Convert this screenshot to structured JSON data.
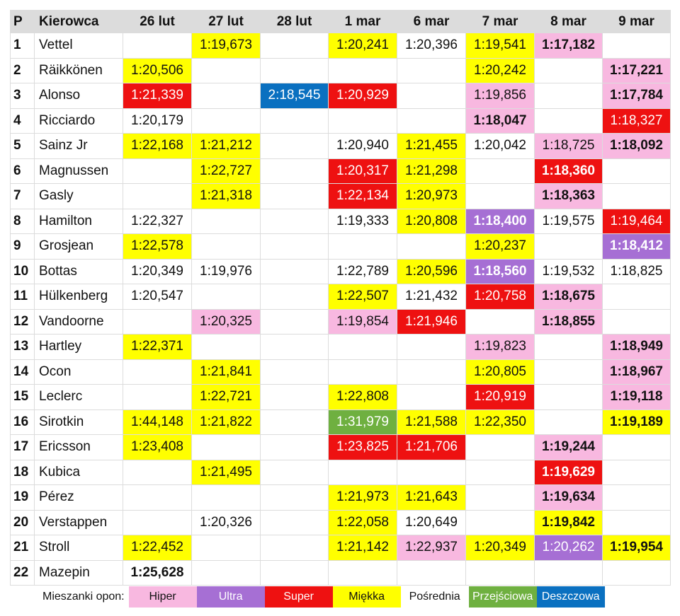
{
  "table": {
    "headers": {
      "position": "P",
      "driver": "Kierowca",
      "days": [
        "26 lut",
        "27 lut",
        "28 lut",
        "1 mar",
        "6 mar",
        "7 mar",
        "8 mar",
        "9 mar"
      ]
    },
    "rows": [
      {
        "pos": "1",
        "driver": "Vettel",
        "cells": [
          {
            "t": ""
          },
          {
            "t": "1:19,673",
            "c": "miekka"
          },
          {
            "t": ""
          },
          {
            "t": "1:20,241",
            "c": "miekka"
          },
          {
            "t": "1:20,396"
          },
          {
            "t": "1:19,541",
            "c": "miekka"
          },
          {
            "t": "1:17,182",
            "c": "hiper",
            "b": true
          },
          {
            "t": ""
          }
        ]
      },
      {
        "pos": "2",
        "driver": "Räikkönen",
        "cells": [
          {
            "t": "1:20,506",
            "c": "miekka"
          },
          {
            "t": ""
          },
          {
            "t": ""
          },
          {
            "t": ""
          },
          {
            "t": ""
          },
          {
            "t": "1:20,242",
            "c": "miekka"
          },
          {
            "t": ""
          },
          {
            "t": "1:17,221",
            "c": "hiper",
            "b": true
          }
        ]
      },
      {
        "pos": "3",
        "driver": "Alonso",
        "cells": [
          {
            "t": "1:21,339",
            "c": "super"
          },
          {
            "t": ""
          },
          {
            "t": "2:18,545",
            "c": "deszczowa"
          },
          {
            "t": "1:20,929",
            "c": "super"
          },
          {
            "t": ""
          },
          {
            "t": "1:19,856",
            "c": "hiper"
          },
          {
            "t": ""
          },
          {
            "t": "1:17,784",
            "c": "hiper",
            "b": true
          }
        ]
      },
      {
        "pos": "4",
        "driver": "Ricciardo",
        "cells": [
          {
            "t": "1:20,179"
          },
          {
            "t": ""
          },
          {
            "t": ""
          },
          {
            "t": ""
          },
          {
            "t": ""
          },
          {
            "t": "1:18,047",
            "c": "hiper",
            "b": true
          },
          {
            "t": ""
          },
          {
            "t": "1:18,327",
            "c": "super"
          }
        ]
      },
      {
        "pos": "5",
        "driver": "Sainz Jr",
        "cells": [
          {
            "t": "1:22,168",
            "c": "miekka"
          },
          {
            "t": "1:21,212",
            "c": "miekka"
          },
          {
            "t": ""
          },
          {
            "t": "1:20,940"
          },
          {
            "t": "1:21,455",
            "c": "miekka"
          },
          {
            "t": "1:20,042"
          },
          {
            "t": "1:18,725",
            "c": "hiper"
          },
          {
            "t": "1:18,092",
            "c": "hiper",
            "b": true
          }
        ]
      },
      {
        "pos": "6",
        "driver": "Magnussen",
        "cells": [
          {
            "t": ""
          },
          {
            "t": "1:22,727",
            "c": "miekka"
          },
          {
            "t": ""
          },
          {
            "t": "1:20,317",
            "c": "super"
          },
          {
            "t": "1:21,298",
            "c": "miekka"
          },
          {
            "t": ""
          },
          {
            "t": "1:18,360",
            "c": "super",
            "b": true
          },
          {
            "t": ""
          }
        ]
      },
      {
        "pos": "7",
        "driver": "Gasly",
        "cells": [
          {
            "t": ""
          },
          {
            "t": "1:21,318",
            "c": "miekka"
          },
          {
            "t": ""
          },
          {
            "t": "1:22,134",
            "c": "super"
          },
          {
            "t": "1:20,973",
            "c": "miekka"
          },
          {
            "t": ""
          },
          {
            "t": "1:18,363",
            "c": "hiper",
            "b": true
          },
          {
            "t": ""
          }
        ]
      },
      {
        "pos": "8",
        "driver": "Hamilton",
        "cells": [
          {
            "t": "1:22,327"
          },
          {
            "t": ""
          },
          {
            "t": ""
          },
          {
            "t": "1:19,333"
          },
          {
            "t": "1:20,808",
            "c": "miekka"
          },
          {
            "t": "1:18,400",
            "c": "ultra",
            "b": true
          },
          {
            "t": "1:19,575"
          },
          {
            "t": "1:19,464",
            "c": "super"
          }
        ]
      },
      {
        "pos": "9",
        "driver": "Grosjean",
        "cells": [
          {
            "t": "1:22,578",
            "c": "miekka"
          },
          {
            "t": ""
          },
          {
            "t": ""
          },
          {
            "t": ""
          },
          {
            "t": ""
          },
          {
            "t": "1:20,237",
            "c": "miekka"
          },
          {
            "t": ""
          },
          {
            "t": "1:18,412",
            "c": "ultra",
            "b": true
          }
        ]
      },
      {
        "pos": "10",
        "driver": "Bottas",
        "cells": [
          {
            "t": "1:20,349"
          },
          {
            "t": "1:19,976"
          },
          {
            "t": ""
          },
          {
            "t": "1:22,789"
          },
          {
            "t": "1:20,596",
            "c": "miekka"
          },
          {
            "t": "1:18,560",
            "c": "ultra",
            "b": true
          },
          {
            "t": "1:19,532"
          },
          {
            "t": "1:18,825"
          }
        ]
      },
      {
        "pos": "11",
        "driver": "Hülkenberg",
        "cells": [
          {
            "t": "1:20,547"
          },
          {
            "t": ""
          },
          {
            "t": ""
          },
          {
            "t": "1:22,507",
            "c": "miekka"
          },
          {
            "t": "1:21,432"
          },
          {
            "t": "1:20,758",
            "c": "super"
          },
          {
            "t": "1:18,675",
            "c": "hiper",
            "b": true
          },
          {
            "t": ""
          }
        ]
      },
      {
        "pos": "12",
        "driver": "Vandoorne",
        "cells": [
          {
            "t": ""
          },
          {
            "t": "1:20,325",
            "c": "hiper"
          },
          {
            "t": ""
          },
          {
            "t": "1:19,854",
            "c": "hiper"
          },
          {
            "t": "1:21,946",
            "c": "super"
          },
          {
            "t": ""
          },
          {
            "t": "1:18,855",
            "c": "hiper",
            "b": true
          },
          {
            "t": ""
          }
        ]
      },
      {
        "pos": "13",
        "driver": "Hartley",
        "cells": [
          {
            "t": "1:22,371",
            "c": "miekka"
          },
          {
            "t": ""
          },
          {
            "t": ""
          },
          {
            "t": ""
          },
          {
            "t": ""
          },
          {
            "t": "1:19,823",
            "c": "hiper"
          },
          {
            "t": ""
          },
          {
            "t": "1:18,949",
            "c": "hiper",
            "b": true
          }
        ]
      },
      {
        "pos": "14",
        "driver": "Ocon",
        "cells": [
          {
            "t": ""
          },
          {
            "t": "1:21,841",
            "c": "miekka"
          },
          {
            "t": ""
          },
          {
            "t": ""
          },
          {
            "t": ""
          },
          {
            "t": "1:20,805",
            "c": "miekka"
          },
          {
            "t": ""
          },
          {
            "t": "1:18,967",
            "c": "hiper",
            "b": true
          }
        ]
      },
      {
        "pos": "15",
        "driver": "Leclerc",
        "cells": [
          {
            "t": ""
          },
          {
            "t": "1:22,721",
            "c": "miekka"
          },
          {
            "t": ""
          },
          {
            "t": "1:22,808",
            "c": "miekka"
          },
          {
            "t": ""
          },
          {
            "t": "1:20,919",
            "c": "super"
          },
          {
            "t": ""
          },
          {
            "t": "1:19,118",
            "c": "hiper",
            "b": true
          }
        ]
      },
      {
        "pos": "16",
        "driver": "Sirotkin",
        "cells": [
          {
            "t": "1:44,148",
            "c": "miekka"
          },
          {
            "t": "1:21,822",
            "c": "miekka"
          },
          {
            "t": ""
          },
          {
            "t": "1:31,979",
            "c": "przejsciowa"
          },
          {
            "t": "1:21,588",
            "c": "miekka"
          },
          {
            "t": "1:22,350",
            "c": "miekka"
          },
          {
            "t": ""
          },
          {
            "t": "1:19,189",
            "c": "miekka",
            "b": true
          }
        ]
      },
      {
        "pos": "17",
        "driver": "Ericsson",
        "cells": [
          {
            "t": "1:23,408",
            "c": "miekka"
          },
          {
            "t": ""
          },
          {
            "t": ""
          },
          {
            "t": "1:23,825",
            "c": "super"
          },
          {
            "t": "1:21,706",
            "c": "super"
          },
          {
            "t": ""
          },
          {
            "t": "1:19,244",
            "c": "hiper",
            "b": true
          },
          {
            "t": ""
          }
        ]
      },
      {
        "pos": "18",
        "driver": "Kubica",
        "cells": [
          {
            "t": ""
          },
          {
            "t": "1:21,495",
            "c": "miekka"
          },
          {
            "t": ""
          },
          {
            "t": ""
          },
          {
            "t": ""
          },
          {
            "t": ""
          },
          {
            "t": "1:19,629",
            "c": "super",
            "b": true
          },
          {
            "t": ""
          }
        ]
      },
      {
        "pos": "19",
        "driver": "Pérez",
        "cells": [
          {
            "t": ""
          },
          {
            "t": ""
          },
          {
            "t": ""
          },
          {
            "t": "1:21,973",
            "c": "miekka"
          },
          {
            "t": "1:21,643",
            "c": "miekka"
          },
          {
            "t": ""
          },
          {
            "t": "1:19,634",
            "c": "hiper",
            "b": true
          },
          {
            "t": ""
          }
        ]
      },
      {
        "pos": "20",
        "driver": "Verstappen",
        "cells": [
          {
            "t": ""
          },
          {
            "t": "1:20,326"
          },
          {
            "t": ""
          },
          {
            "t": "1:22,058",
            "c": "miekka"
          },
          {
            "t": "1:20,649"
          },
          {
            "t": ""
          },
          {
            "t": "1:19,842",
            "c": "miekka",
            "b": true
          },
          {
            "t": ""
          }
        ]
      },
      {
        "pos": "21",
        "driver": "Stroll",
        "cells": [
          {
            "t": "1:22,452",
            "c": "miekka"
          },
          {
            "t": ""
          },
          {
            "t": ""
          },
          {
            "t": "1:21,142",
            "c": "miekka"
          },
          {
            "t": "1:22,937",
            "c": "hiper"
          },
          {
            "t": "1:20,349",
            "c": "miekka"
          },
          {
            "t": "1:20,262",
            "c": "ultra"
          },
          {
            "t": "1:19,954",
            "c": "miekka",
            "b": true
          }
        ]
      },
      {
        "pos": "22",
        "driver": "Mazepin",
        "cells": [
          {
            "t": "1:25,628",
            "b": true
          },
          {
            "t": ""
          },
          {
            "t": ""
          },
          {
            "t": ""
          },
          {
            "t": ""
          },
          {
            "t": ""
          },
          {
            "t": ""
          },
          {
            "t": ""
          }
        ]
      }
    ]
  },
  "legend": {
    "label": "Mieszanki opon:",
    "items": [
      {
        "key": "hiper",
        "label": "Hiper",
        "color": "#f8b8e0",
        "text_color": "#111111"
      },
      {
        "key": "ultra",
        "label": "Ultra",
        "color": "#a66fd4",
        "text_color": "#ffffff"
      },
      {
        "key": "super",
        "label": "Super",
        "color": "#ee1111",
        "text_color": "#ffffff"
      },
      {
        "key": "miekka",
        "label": "Miękka",
        "color": "#ffff00",
        "text_color": "#111111"
      },
      {
        "key": "posrednia",
        "label": "Pośrednia",
        "color": "#ffffff",
        "text_color": "#111111"
      },
      {
        "key": "przejsciowa",
        "label": "Przejściowa",
        "color": "#6fb040",
        "text_color": "#ffffff"
      },
      {
        "key": "deszczowa",
        "label": "Deszczowa",
        "color": "#0a70c0",
        "text_color": "#ffffff"
      }
    ]
  }
}
